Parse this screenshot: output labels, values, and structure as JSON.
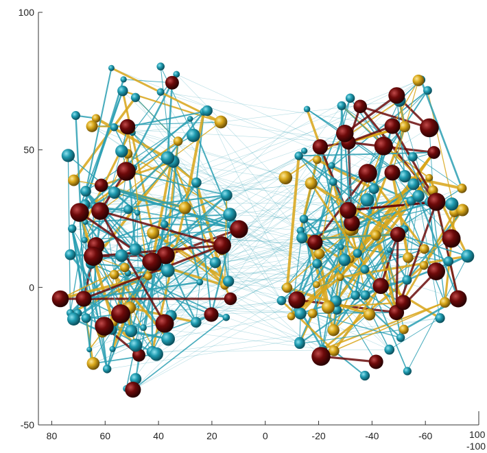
{
  "figure": {
    "y_axis": {
      "ticks": [
        {
          "label": "100",
          "value": 100
        },
        {
          "label": "50",
          "value": 50
        },
        {
          "label": "0",
          "value": 0
        },
        {
          "label": "-50",
          "value": -50
        }
      ],
      "range": [
        -50,
        100
      ]
    },
    "x_axis": {
      "ticks": [
        {
          "label": "80",
          "value": 80
        },
        {
          "label": "60",
          "value": 60
        },
        {
          "label": "40",
          "value": 40
        },
        {
          "label": "20",
          "value": 20
        },
        {
          "label": "0",
          "value": 0
        },
        {
          "label": "-20",
          "value": -20
        },
        {
          "label": "-40",
          "value": -40
        },
        {
          "label": "-60",
          "value": -60
        }
      ],
      "range": [
        85,
        -80
      ],
      "direction": "reversed"
    },
    "z_axis_fragment": {
      "labels": [
        "100",
        "-100"
      ]
    },
    "colors": {
      "edge_teal": "#2a9fb3",
      "edge_gold": "#d8a417",
      "edge_dark_red": "#6a0b0b",
      "node_teal": "#1f9bb0",
      "node_gold": "#d9a81a",
      "node_dark_red": "#6d0a0a",
      "background": "#ffffff"
    }
  }
}
